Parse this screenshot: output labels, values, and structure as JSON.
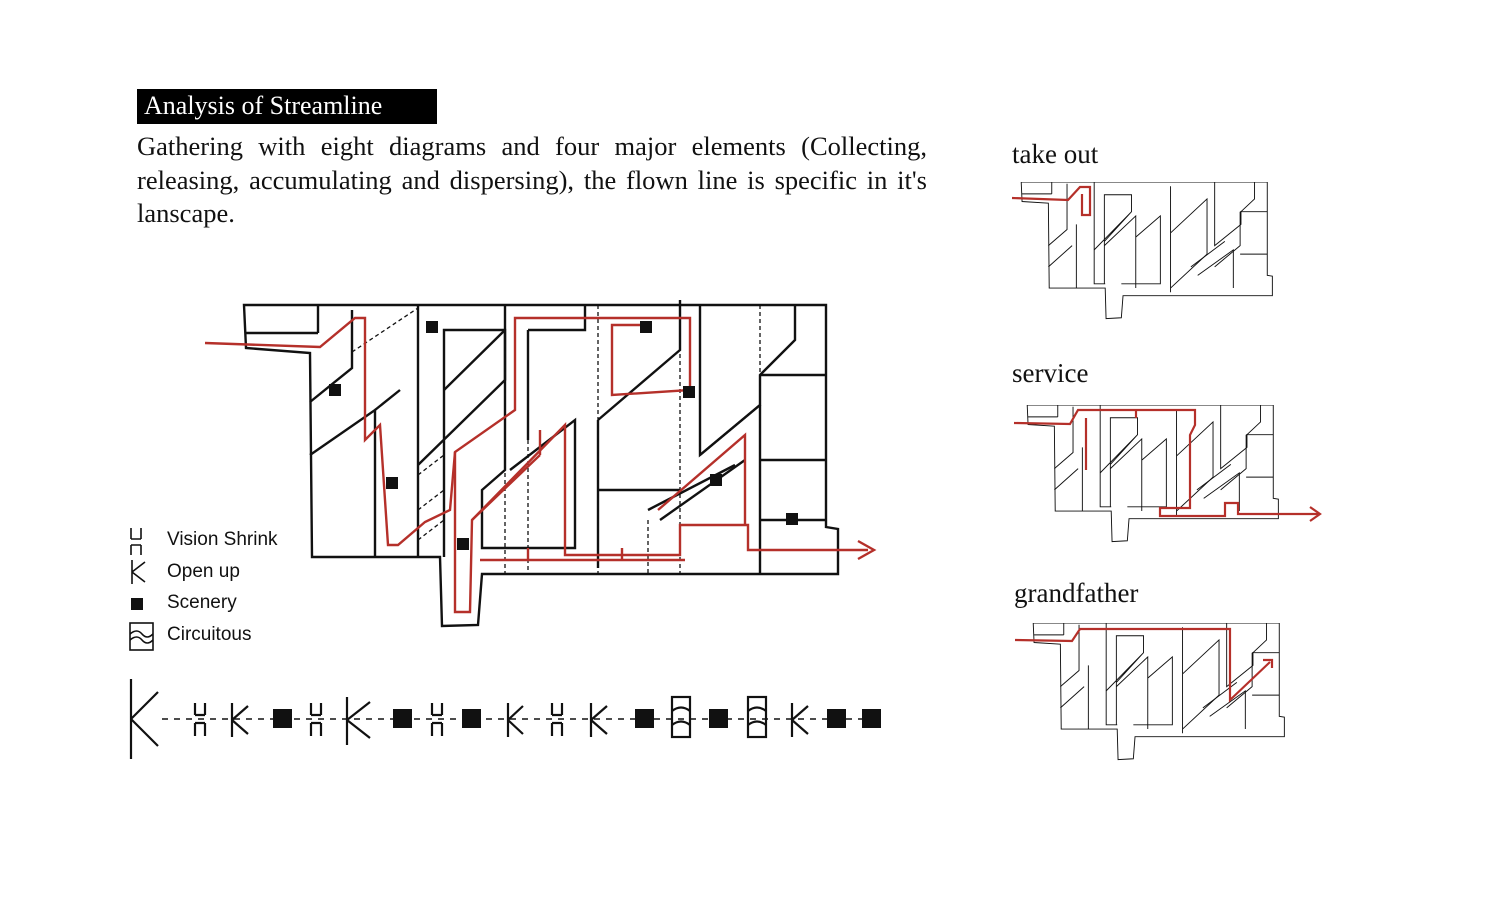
{
  "heading": "Analysis of Streamline",
  "description": "Gathering with eight diagrams and four major elements (Collecting, releasing, accumulating and dispersing), the flown line is specific in it's lanscape.",
  "routes": [
    {
      "label": "take out"
    },
    {
      "label": "service"
    },
    {
      "label": "grandfather"
    }
  ],
  "legend": [
    {
      "label": "Vision Shrink",
      "icon": "vision-shrink-icon"
    },
    {
      "label": "Open up",
      "icon": "open-up-icon"
    },
    {
      "label": "Scenery",
      "icon": "scenery-icon"
    },
    {
      "label": "Circuitous",
      "icon": "circuitous-icon"
    }
  ],
  "sequence": [
    "open-up",
    "vision-shrink",
    "open-up",
    "scenery",
    "vision-shrink",
    "open-up",
    "scenery",
    "vision-shrink",
    "scenery",
    "open-up",
    "vision-shrink",
    "open-up",
    "scenery",
    "circuitous",
    "scenery",
    "circuitous",
    "open-up",
    "scenery",
    "scenery"
  ],
  "colors": {
    "route": "#b5302a",
    "ink": "#111111",
    "title_bg": "#000000",
    "title_text": "#ffffff"
  }
}
